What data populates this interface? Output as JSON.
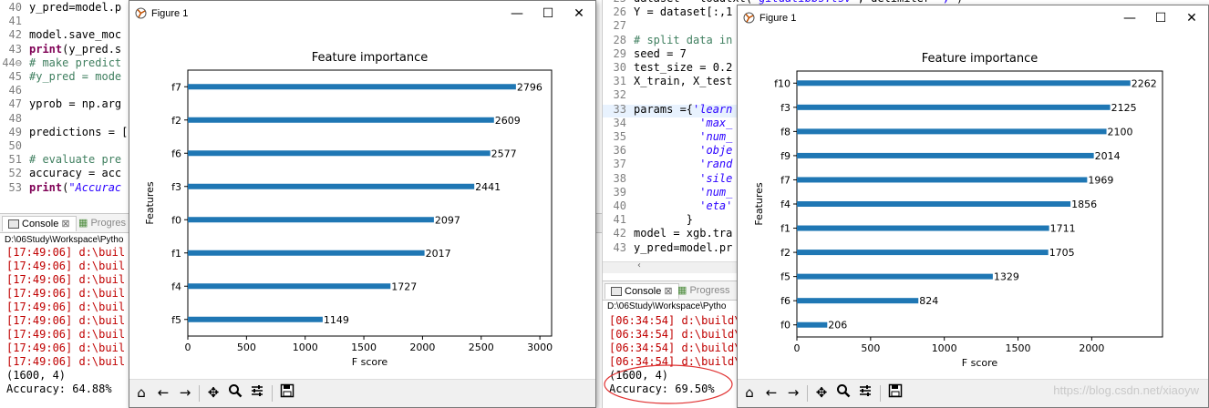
{
  "left": {
    "editor_lines": [
      {
        "n": "40",
        "html": "y_pred=model.p"
      },
      {
        "n": "41",
        "html": ""
      },
      {
        "n": "42",
        "html": "model.save_moc"
      },
      {
        "n": "43",
        "html": "<span class='kw'>print</span>(y_pred.s"
      },
      {
        "n": "44⊖",
        "html": "<span class='cm'># make predict</span>"
      },
      {
        "n": "45",
        "html": "<span class='cm'>#y_pred = mode</span>"
      },
      {
        "n": "46",
        "html": ""
      },
      {
        "n": "47",
        "html": "yprob = np.arg"
      },
      {
        "n": "48",
        "html": ""
      },
      {
        "n": "49",
        "html": "predictions = ["
      },
      {
        "n": "50",
        "html": ""
      },
      {
        "n": "51",
        "html": "<span class='cm'># evaluate pre</span>"
      },
      {
        "n": "52",
        "html": "accuracy = acc"
      },
      {
        "n": "53",
        "html": "<span class='kw'>print</span>(<span class='st'>\"Accurac</span>"
      }
    ],
    "console_tab": "Console",
    "progress_tab": "Progres",
    "path": "D:\\06Study\\Workspace\\Pytho",
    "console_lines": [
      "[17:49:06] d:\\buil",
      "[17:49:06] d:\\buil",
      "[17:49:06] d:\\buil",
      "[17:49:06] d:\\buil",
      "[17:49:06] d:\\buil",
      "[17:49:06] d:\\buil",
      "[17:49:06] d:\\buil",
      "[17:49:06] d:\\buil",
      "[17:49:06] d:\\buil"
    ],
    "shape_line": "(1600, 4)",
    "accuracy_line": "Accuracy: 64.88%"
  },
  "right": {
    "editor_lines": [
      {
        "n": "25",
        "html": "dataset = loadtxt(<span class='st'>'gitdatibbs.tsv'</span>, delimiter=<span class='st'>\",\"</span>)"
      },
      {
        "n": "26",
        "html": "Y = dataset[:,1"
      },
      {
        "n": "27",
        "html": ""
      },
      {
        "n": "28",
        "html": "<span class='cm'># split data in</span>"
      },
      {
        "n": "29",
        "html": "seed = 7"
      },
      {
        "n": "30",
        "html": "test_size = 0.2"
      },
      {
        "n": "31",
        "html": "X_train, X_test"
      },
      {
        "n": "32",
        "html": ""
      },
      {
        "n": "33",
        "html": "params ={<span class='st'>'learn</span>"
      },
      {
        "n": "34",
        "html": "          <span class='st'>'max_</span>"
      },
      {
        "n": "35",
        "html": "          <span class='st'>'num_</span>"
      },
      {
        "n": "36",
        "html": "          <span class='st'>'obje</span>"
      },
      {
        "n": "37",
        "html": "          <span class='st'>'rand</span>"
      },
      {
        "n": "38",
        "html": "          <span class='st'>'sile</span>"
      },
      {
        "n": "39",
        "html": "          <span class='st'>'num_</span>"
      },
      {
        "n": "40",
        "html": "          <span class='st'>'eta'</span>"
      },
      {
        "n": "41",
        "html": "        }"
      },
      {
        "n": "42",
        "html": "model = xgb.tra"
      },
      {
        "n": "43",
        "html": "y_pred=model.pr"
      }
    ],
    "console_tab": "Console",
    "progress_tab": "Progress",
    "path": "D:\\06Study\\Workspace\\Pytho",
    "console_lines": [
      "[06:34:54] d:\\build\\",
      "[06:34:54] d:\\build\\",
      "[06:34:54] d:\\build\\",
      "[06:34:54] d:\\build\\"
    ],
    "shape_line": "(1600, 4)",
    "accuracy_line": "Accuracy: 69.50%"
  },
  "figure_title": "Figure 1",
  "watermark": "https://blog.csdn.net/xiaoyw",
  "icons": {
    "minimize": "—",
    "maximize": "☐",
    "close": "✕",
    "home": "⌂",
    "back": "←",
    "forward": "→",
    "pan": "✥",
    "zoom": "🔍",
    "configure": "☰",
    "save": "💾"
  },
  "chart_data": [
    {
      "type": "bar",
      "orientation": "horizontal",
      "title": "Feature importance",
      "xlabel": "F score",
      "ylabel": "Features",
      "categories": [
        "f7",
        "f2",
        "f6",
        "f3",
        "f0",
        "f1",
        "f4",
        "f5"
      ],
      "values": [
        2796,
        2609,
        2577,
        2441,
        2097,
        2017,
        1727,
        1149
      ],
      "xlim": [
        0,
        3100
      ],
      "xticks": [
        0,
        500,
        1000,
        1500,
        2000,
        2500,
        3000
      ],
      "grid": false,
      "bar_color": "#1f77b4"
    },
    {
      "type": "bar",
      "orientation": "horizontal",
      "title": "Feature importance",
      "xlabel": "F score",
      "ylabel": "Features",
      "categories": [
        "f10",
        "f3",
        "f8",
        "f9",
        "f7",
        "f4",
        "f1",
        "f2",
        "f5",
        "f6",
        "f0"
      ],
      "values": [
        2262,
        2125,
        2100,
        2014,
        1969,
        1856,
        1711,
        1705,
        1329,
        824,
        206
      ],
      "xlim": [
        0,
        2480
      ],
      "xticks": [
        0,
        500,
        1000,
        1500,
        2000
      ],
      "grid": false,
      "bar_color": "#1f77b4"
    }
  ]
}
